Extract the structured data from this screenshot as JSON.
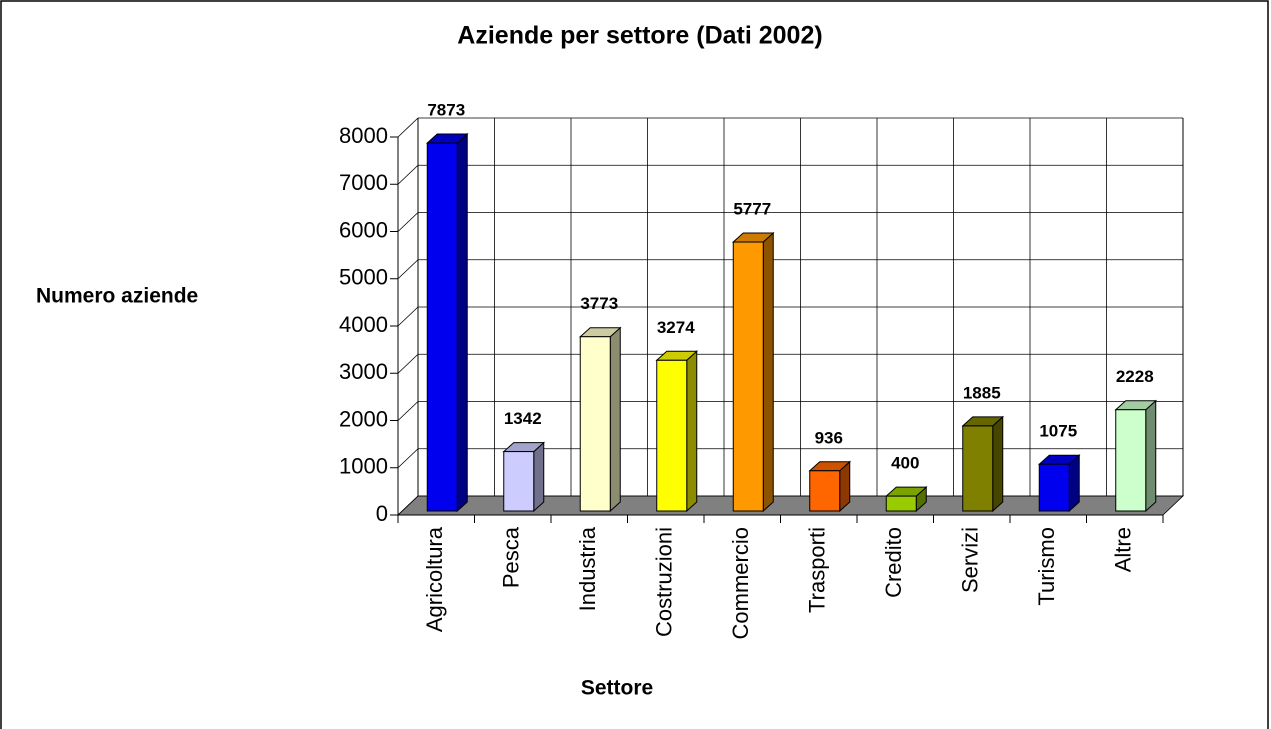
{
  "chart_data": {
    "type": "bar3d",
    "title": "Aziende per settore (Dati 2002)",
    "xlabel": "Settore",
    "ylabel": "Numero aziende",
    "categories": [
      "Agricoltura",
      "Pesca",
      "Industria",
      "Costruzioni",
      "Commercio",
      "Trasporti",
      "Credito",
      "Servizi",
      "Turismo",
      "Altre"
    ],
    "values": [
      7873,
      1342,
      3773,
      3274,
      5777,
      936,
      400,
      1885,
      1075,
      2228
    ],
    "colors": [
      "#0000ee",
      "#ccccff",
      "#ffffcc",
      "#ffff00",
      "#ff9900",
      "#ff6600",
      "#99cc00",
      "#808000",
      "#0000ee",
      "#ccffcc"
    ],
    "ylim": [
      0,
      8000
    ],
    "yticks": [
      0,
      1000,
      2000,
      3000,
      4000,
      5000,
      6000,
      7000,
      8000
    ],
    "grid": true
  }
}
